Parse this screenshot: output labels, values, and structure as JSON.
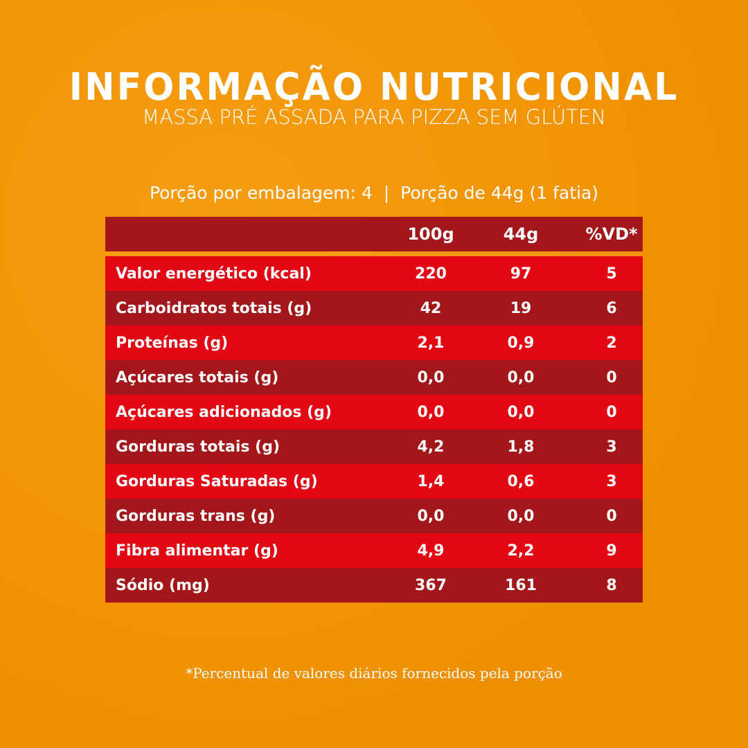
{
  "title": "INFORMAÇÃO NUTRICIONAL",
  "subtitle": "MASSA PRÉ ASSADA PARA PIZZA SEM GLÚTEN",
  "portion": "Porção por embalagem: 4  |  Porção de 44g (1 fatia)",
  "headers": [
    "100g",
    "44g",
    "%VD*"
  ],
  "rows": [
    {
      "label": "Valor energético (kcal)",
      "v100": "220",
      "v44": "97",
      "vd": "5"
    },
    {
      "label": "Carboidratos totais (g)",
      "v100": "42",
      "v44": "19",
      "vd": "6"
    },
    {
      "label": "Proteínas (g)",
      "v100": "2,1",
      "v44": "0,9",
      "vd": "2"
    },
    {
      "label": "Açúcares totais (g)",
      "v100": "0,0",
      "v44": "0,0",
      "vd": "0"
    },
    {
      "label": "Açúcares adicionados (g)",
      "v100": "0,0",
      "v44": "0,0",
      "vd": "0"
    },
    {
      "label": "Gorduras totais (g)",
      "v100": "4,2",
      "v44": "1,8",
      "vd": "3"
    },
    {
      "label": "Gorduras Saturadas (g)",
      "v100": "1,4",
      "v44": "0,6",
      "vd": "3"
    },
    {
      "label": "Gorduras trans (g)",
      "v100": "0,0",
      "v44": "0,0",
      "vd": "0"
    },
    {
      "label": "Fibra alimentar (g)",
      "v100": "4,9",
      "v44": "2,2",
      "vd": "9"
    },
    {
      "label": "Sódio (mg)",
      "v100": "367",
      "v44": "161",
      "vd": "8"
    }
  ],
  "footnote": "*Percentual de valores diários fornecidos pela porção",
  "colors": {
    "background": "#F29400",
    "dark_red": "#A3171A",
    "red": "#E30613"
  }
}
